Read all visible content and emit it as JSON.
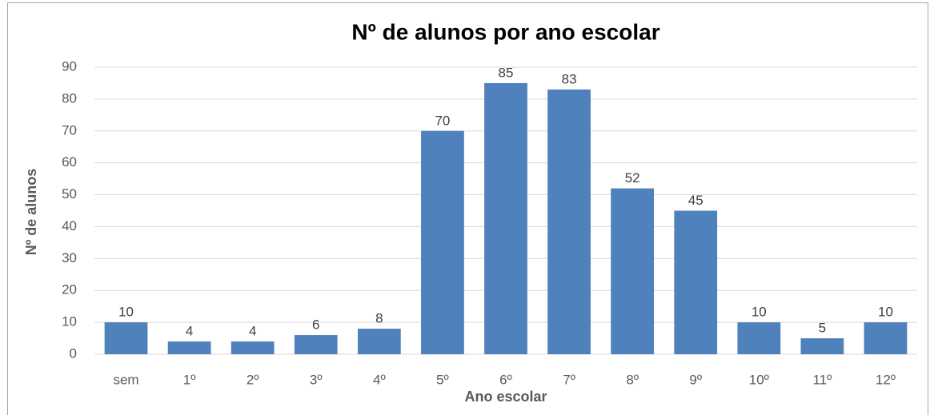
{
  "chart_data": {
    "type": "bar",
    "title": "Nº de alunos por ano escolar",
    "x_label": "Ano escolar",
    "y_label": "Nº de alunos",
    "categories": [
      "sem",
      "1º",
      "2º",
      "3º",
      "4º",
      "5º",
      "6º",
      "7º",
      "8º",
      "9º",
      "10º",
      "11º",
      "12º"
    ],
    "values": [
      10,
      4,
      4,
      6,
      8,
      70,
      85,
      83,
      52,
      45,
      10,
      5,
      10
    ],
    "color": "#4f81bd",
    "ylim": [
      0,
      90
    ],
    "yticks": [
      0,
      10,
      20,
      30,
      40,
      50,
      60,
      70,
      80,
      90
    ],
    "grid": true
  }
}
